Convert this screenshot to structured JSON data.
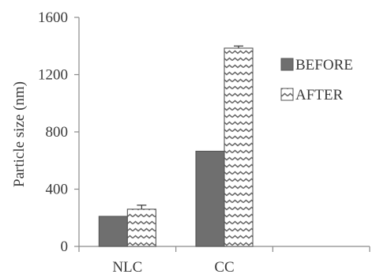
{
  "chart_data": {
    "type": "bar",
    "categories": [
      "NLC",
      "CC"
    ],
    "series": [
      {
        "name": "BEFORE",
        "values": [
          210,
          665
        ],
        "error": [
          0,
          0
        ],
        "pattern": "solid",
        "color": "#6f6f6f"
      },
      {
        "name": "AFTER",
        "values": [
          260,
          1385
        ],
        "error": [
          28,
          15
        ],
        "pattern": "wavy",
        "color": "#ffffff"
      }
    ],
    "ylabel": "Particle size (nm)",
    "xlabel": "",
    "ylim": [
      0,
      1600
    ],
    "yticks": [
      0,
      400,
      800,
      1200,
      1600
    ],
    "grid": false,
    "legend_position": "right",
    "extra_empty_category_slot": true
  }
}
